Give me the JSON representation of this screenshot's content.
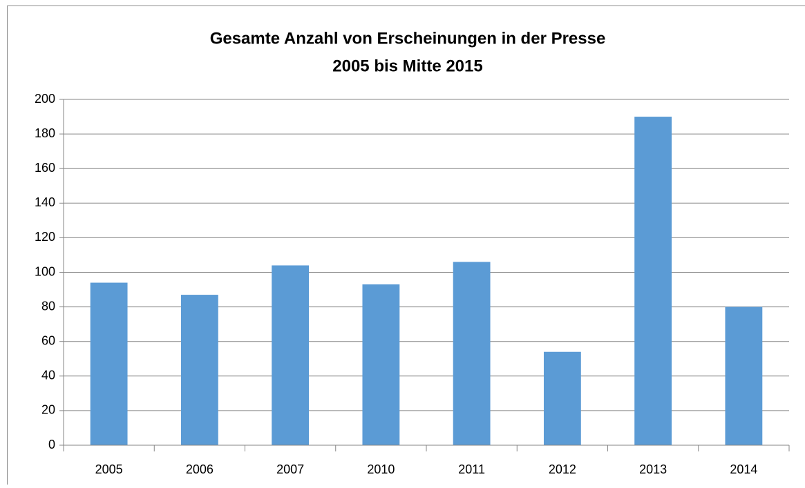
{
  "chart_data": {
    "type": "bar",
    "title": "Gesamte Anzahl von Erscheinungen in der Presse",
    "subtitle": "2005 bis Mitte 2015",
    "categories": [
      "2005",
      "2006",
      "2007",
      "2010",
      "2011",
      "2012",
      "2013",
      "2014"
    ],
    "values": [
      94,
      87,
      104,
      93,
      106,
      54,
      190,
      80
    ],
    "color": "#5b9bd5",
    "ylim": [
      0,
      200
    ],
    "yticks": [
      0,
      20,
      40,
      60,
      80,
      100,
      120,
      140,
      160,
      180,
      200
    ],
    "grid": true
  }
}
